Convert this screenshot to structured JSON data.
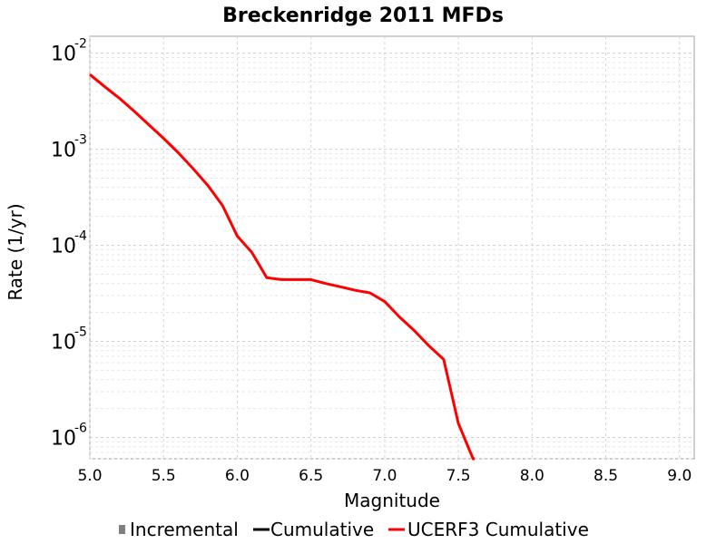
{
  "chart_data": {
    "type": "line",
    "title": "Breckenridge 2011 MFDs",
    "xlabel": "Magnitude",
    "ylabel": "Rate (1/yr)",
    "xlim": [
      5.0,
      9.1
    ],
    "ylim": [
      6e-07,
      0.015
    ],
    "yscale": "log",
    "grid": true,
    "legend_position": "bottom",
    "x_ticks": [
      "5.0",
      "5.5",
      "6.0",
      "6.5",
      "7.0",
      "7.5",
      "8.0",
      "8.5",
      "9.0"
    ],
    "y_ticks": [
      {
        "base": "10",
        "exp": "-2",
        "value": 0.01
      },
      {
        "base": "10",
        "exp": "-3",
        "value": 0.001
      },
      {
        "base": "10",
        "exp": "-4",
        "value": 0.0001
      },
      {
        "base": "10",
        "exp": "-5",
        "value": 1e-05
      },
      {
        "base": "10",
        "exp": "-6",
        "value": 1e-06
      }
    ],
    "legend": [
      {
        "label": "Incremental",
        "color": "#808080",
        "marker": "square"
      },
      {
        "label": "Cumulative",
        "color": "#000000",
        "marker": "line"
      },
      {
        "label": "UCERF3 Cumulative",
        "color": "#ff0000",
        "marker": "line"
      }
    ],
    "series": [
      {
        "name": "UCERF3 Cumulative",
        "color": "#ff0000",
        "x": [
          5.0,
          5.1,
          5.2,
          5.3,
          5.4,
          5.5,
          5.6,
          5.7,
          5.8,
          5.9,
          6.0,
          6.1,
          6.2,
          6.3,
          6.4,
          6.5,
          6.6,
          6.7,
          6.8,
          6.9,
          7.0,
          7.1,
          7.2,
          7.3,
          7.4,
          7.5,
          7.6,
          7.61
        ],
        "y": [
          0.006,
          0.0045,
          0.0034,
          0.0025,
          0.0018,
          0.0013,
          0.00092,
          0.00063,
          0.00042,
          0.00026,
          0.000125,
          8.4e-05,
          4.6e-05,
          4.4e-05,
          4.4e-05,
          4.4e-05,
          4e-05,
          3.7e-05,
          3.4e-05,
          3.2e-05,
          2.6e-05,
          1.8e-05,
          1.3e-05,
          9e-06,
          6.5e-06,
          1.4e-06,
          6e-07,
          6e-07
        ]
      }
    ]
  }
}
